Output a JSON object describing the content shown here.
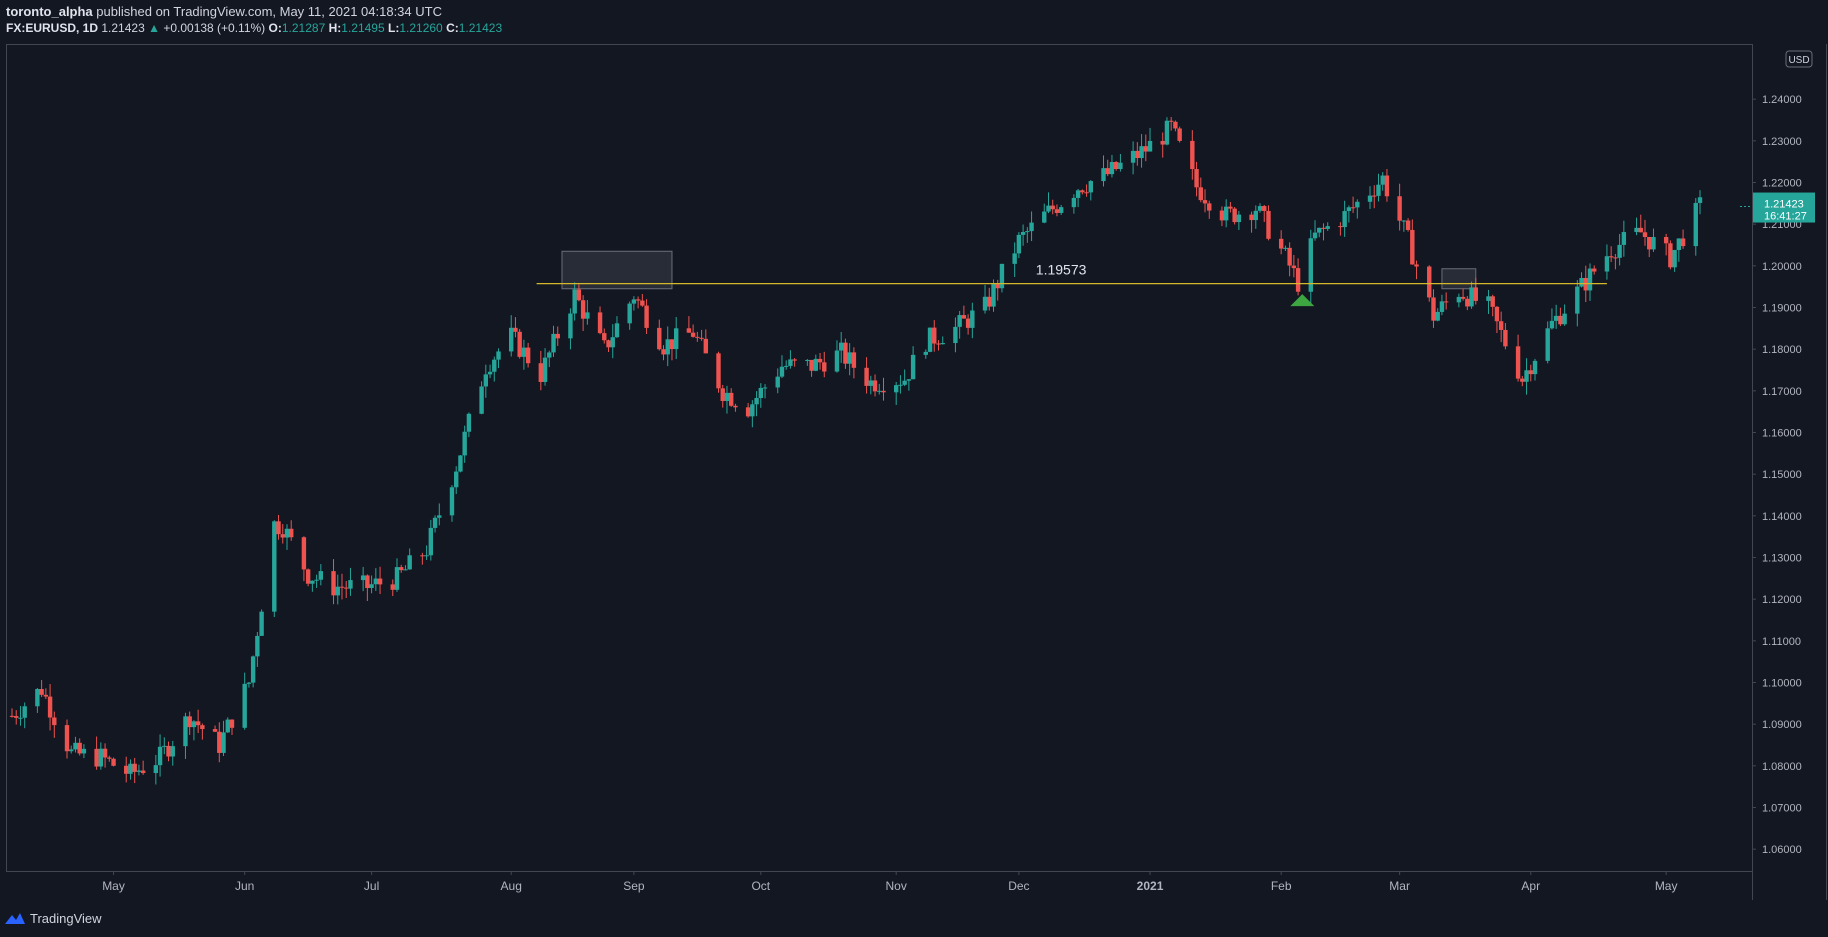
{
  "header": {
    "author": "toronto_alpha",
    "published_text": "published on TradingView.com, May 11, 2021 04:18:34 UTC",
    "symbol": "FX:EURUSD, 1D",
    "last": "1.21423",
    "change": "+0.00138 (+0.11%)",
    "o_label": "O:",
    "o_value": "1.21287",
    "h_label": "H:",
    "h_value": "1.21495",
    "l_label": "L:",
    "l_value": "1.21260",
    "c_label": "C:",
    "c_value": "1.21423"
  },
  "footer": {
    "brand": "TradingView"
  },
  "colors": {
    "background": "#131722",
    "up": "#26a69a",
    "down": "#ef5350",
    "level_line": "#d4b82a",
    "grid_border": "#434651",
    "axis_text": "#b2b5be",
    "arrow": "#3ea641"
  },
  "chart_data": {
    "type": "candlestick",
    "symbol": "FX:EURUSD",
    "interval": "1D",
    "currency_label": "USD",
    "ylim": [
      1.055,
      1.253
    ],
    "y_ticks": [
      "1.24000",
      "1.23000",
      "1.22000",
      "1.21000",
      "1.20000",
      "1.19000",
      "1.18000",
      "1.17000",
      "1.16000",
      "1.15000",
      "1.14000",
      "1.13000",
      "1.12000",
      "1.11000",
      "1.10000",
      "1.09000",
      "1.08000",
      "1.07000",
      "1.06000"
    ],
    "x_ticks": [
      "May",
      "Jun",
      "Jul",
      "Aug",
      "Sep",
      "Oct",
      "Nov",
      "Dec",
      "2021",
      "Feb",
      "Mar",
      "Apr",
      "May"
    ],
    "x_tick_dates": [
      "2020-05-01",
      "2020-06-01",
      "2020-07-01",
      "2020-08-03",
      "2020-09-01",
      "2020-10-01",
      "2020-11-02",
      "2020-12-01",
      "2021-01-01",
      "2021-02-01",
      "2021-03-01",
      "2021-04-01",
      "2021-05-03"
    ],
    "date_range": [
      "2020-04-07",
      "2021-05-11"
    ],
    "current_price": {
      "value": 1.21423,
      "label": "1.21423",
      "countdown": "16:41:27"
    },
    "horizontal_level": {
      "value": 1.19573,
      "label": "1.19573"
    },
    "highlight_boxes": [
      {
        "from": "2020-08-15",
        "to": "2020-09-10",
        "low": 1.1945,
        "high": 1.2035
      },
      {
        "from": "2021-03-11",
        "to": "2021-03-19",
        "low": 1.1945,
        "high": 1.1993
      }
    ],
    "marker": {
      "date": "2021-02-06",
      "price": 1.1932,
      "shape": "up-triangle"
    },
    "closes": [
      [
        "2020-04-07",
        1.092
      ],
      [
        "2020-04-14",
        1.0985
      ],
      [
        "2020-04-21",
        1.083
      ],
      [
        "2020-04-28",
        1.082
      ],
      [
        "2020-05-05",
        1.078
      ],
      [
        "2020-05-12",
        1.082
      ],
      [
        "2020-05-19",
        1.092
      ],
      [
        "2020-05-26",
        1.085
      ],
      [
        "2020-06-02",
        1.1
      ],
      [
        "2020-06-08",
        1.138
      ],
      [
        "2020-06-10",
        1.1375
      ],
      [
        "2020-06-16",
        1.126
      ],
      [
        "2020-06-22",
        1.123
      ],
      [
        "2020-06-30",
        1.123
      ],
      [
        "2020-07-07",
        1.125
      ],
      [
        "2020-07-14",
        1.132
      ],
      [
        "2020-07-21",
        1.152
      ],
      [
        "2020-07-28",
        1.176
      ],
      [
        "2020-08-03",
        1.183
      ],
      [
        "2020-08-10",
        1.174
      ],
      [
        "2020-08-18",
        1.193
      ],
      [
        "2020-08-25",
        1.18
      ],
      [
        "2020-09-01",
        1.193
      ],
      [
        "2020-09-08",
        1.181
      ],
      [
        "2020-09-15",
        1.184
      ],
      [
        "2020-09-22",
        1.17
      ],
      [
        "2020-09-28",
        1.166
      ],
      [
        "2020-10-06",
        1.176
      ],
      [
        "2020-10-13",
        1.176
      ],
      [
        "2020-10-20",
        1.179
      ],
      [
        "2020-10-27",
        1.172
      ],
      [
        "2020-11-04",
        1.173
      ],
      [
        "2020-11-09",
        1.182
      ],
      [
        "2020-11-16",
        1.185
      ],
      [
        "2020-11-23",
        1.19
      ],
      [
        "2020-12-01",
        1.206
      ],
      [
        "2020-12-07",
        1.212
      ],
      [
        "2020-12-15",
        1.219
      ],
      [
        "2020-12-22",
        1.222
      ],
      [
        "2020-12-31",
        1.228
      ],
      [
        "2021-01-06",
        1.233
      ],
      [
        "2021-01-12",
        1.219
      ],
      [
        "2021-01-19",
        1.212
      ],
      [
        "2021-01-26",
        1.214
      ],
      [
        "2021-02-02",
        1.202
      ],
      [
        "2021-02-05",
        1.196
      ],
      [
        "2021-02-09",
        1.207
      ],
      [
        "2021-02-16",
        1.212
      ],
      [
        "2021-02-25",
        1.221
      ],
      [
        "2021-03-03",
        1.206
      ],
      [
        "2021-03-09",
        1.188
      ],
      [
        "2021-03-15",
        1.194
      ],
      [
        "2021-03-22",
        1.19
      ],
      [
        "2021-03-30",
        1.173
      ],
      [
        "2021-04-06",
        1.186
      ],
      [
        "2021-04-13",
        1.195
      ],
      [
        "2021-04-20",
        1.204
      ],
      [
        "2021-04-27",
        1.208
      ],
      [
        "2021-05-04",
        1.202
      ],
      [
        "2021-05-11",
        1.2142
      ]
    ]
  }
}
